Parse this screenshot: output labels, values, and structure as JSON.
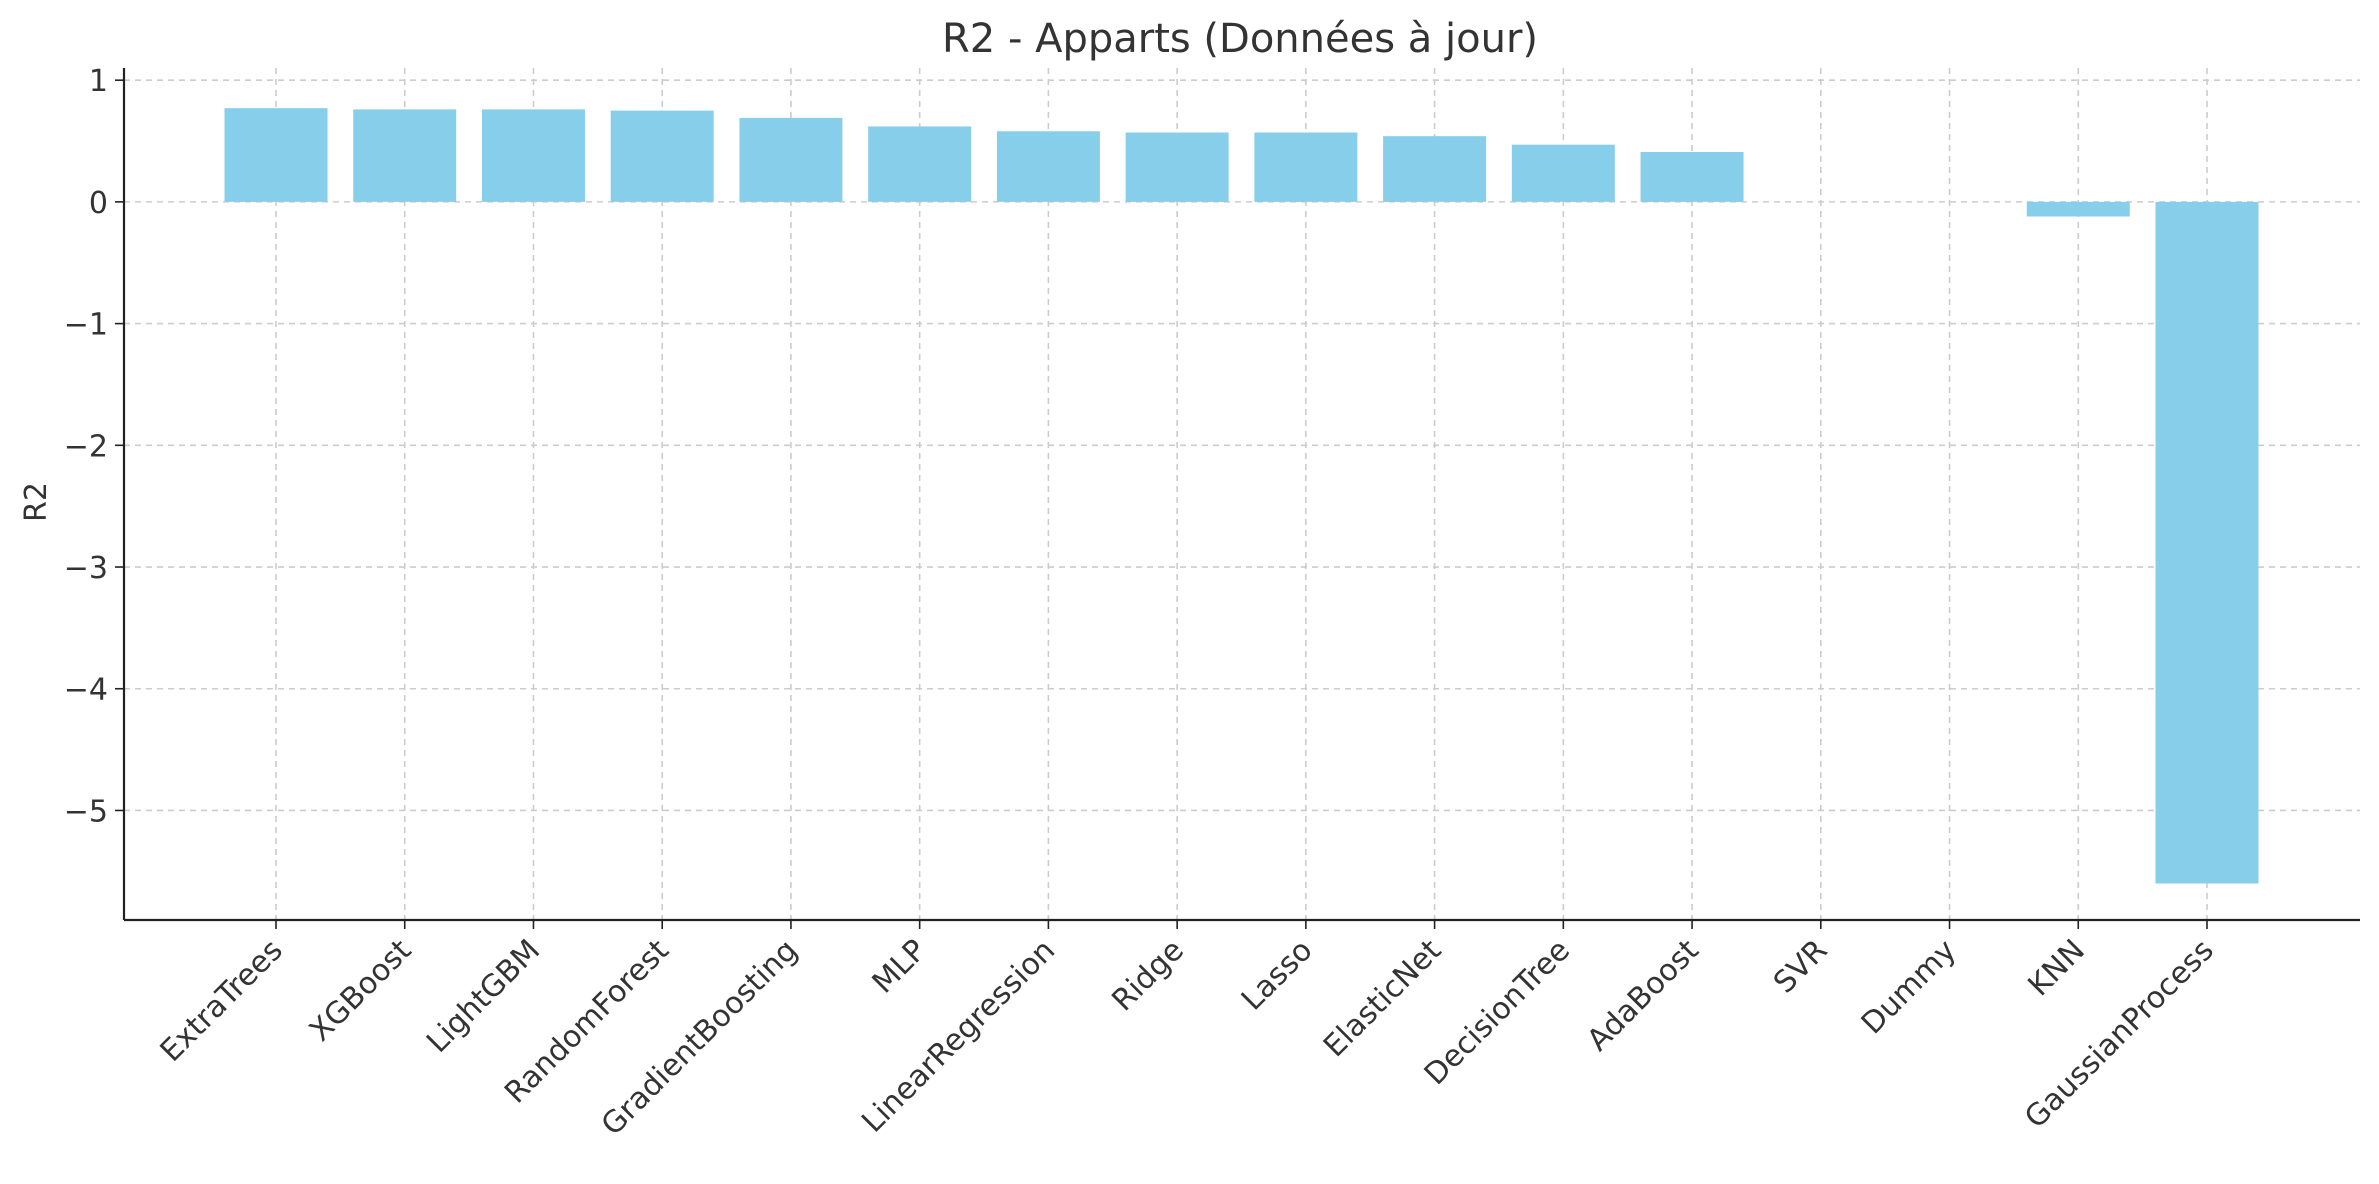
{
  "chart_data": {
    "type": "bar",
    "title": "R2 - Apparts (Données à jour)",
    "xlabel": "",
    "ylabel": "R2",
    "categories": [
      "ExtraTrees",
      "XGBoost",
      "LightGBM",
      "RandomForest",
      "GradientBoosting",
      "MLP",
      "LinearRegression",
      "Ridge",
      "Lasso",
      "ElasticNet",
      "DecisionTree",
      "AdaBoost",
      "SVR",
      "Dummy",
      "KNN",
      "GaussianProcess"
    ],
    "values": [
      0.77,
      0.76,
      0.76,
      0.75,
      0.69,
      0.62,
      0.58,
      0.57,
      0.57,
      0.54,
      0.47,
      0.41,
      0.0,
      0.0,
      -0.12,
      -5.6
    ],
    "ylim": [
      -5.9,
      1.1
    ],
    "yticks": [
      1,
      0,
      -1,
      -2,
      -3,
      -4,
      -5
    ],
    "ytick_labels": [
      "1",
      "0",
      "−1",
      "−2",
      "−3",
      "−4",
      "−5"
    ],
    "grid": true,
    "bar_color": "#87CEEB",
    "axis_color": "#222222",
    "grid_color": "#cccccc",
    "text_color": "#333333"
  }
}
